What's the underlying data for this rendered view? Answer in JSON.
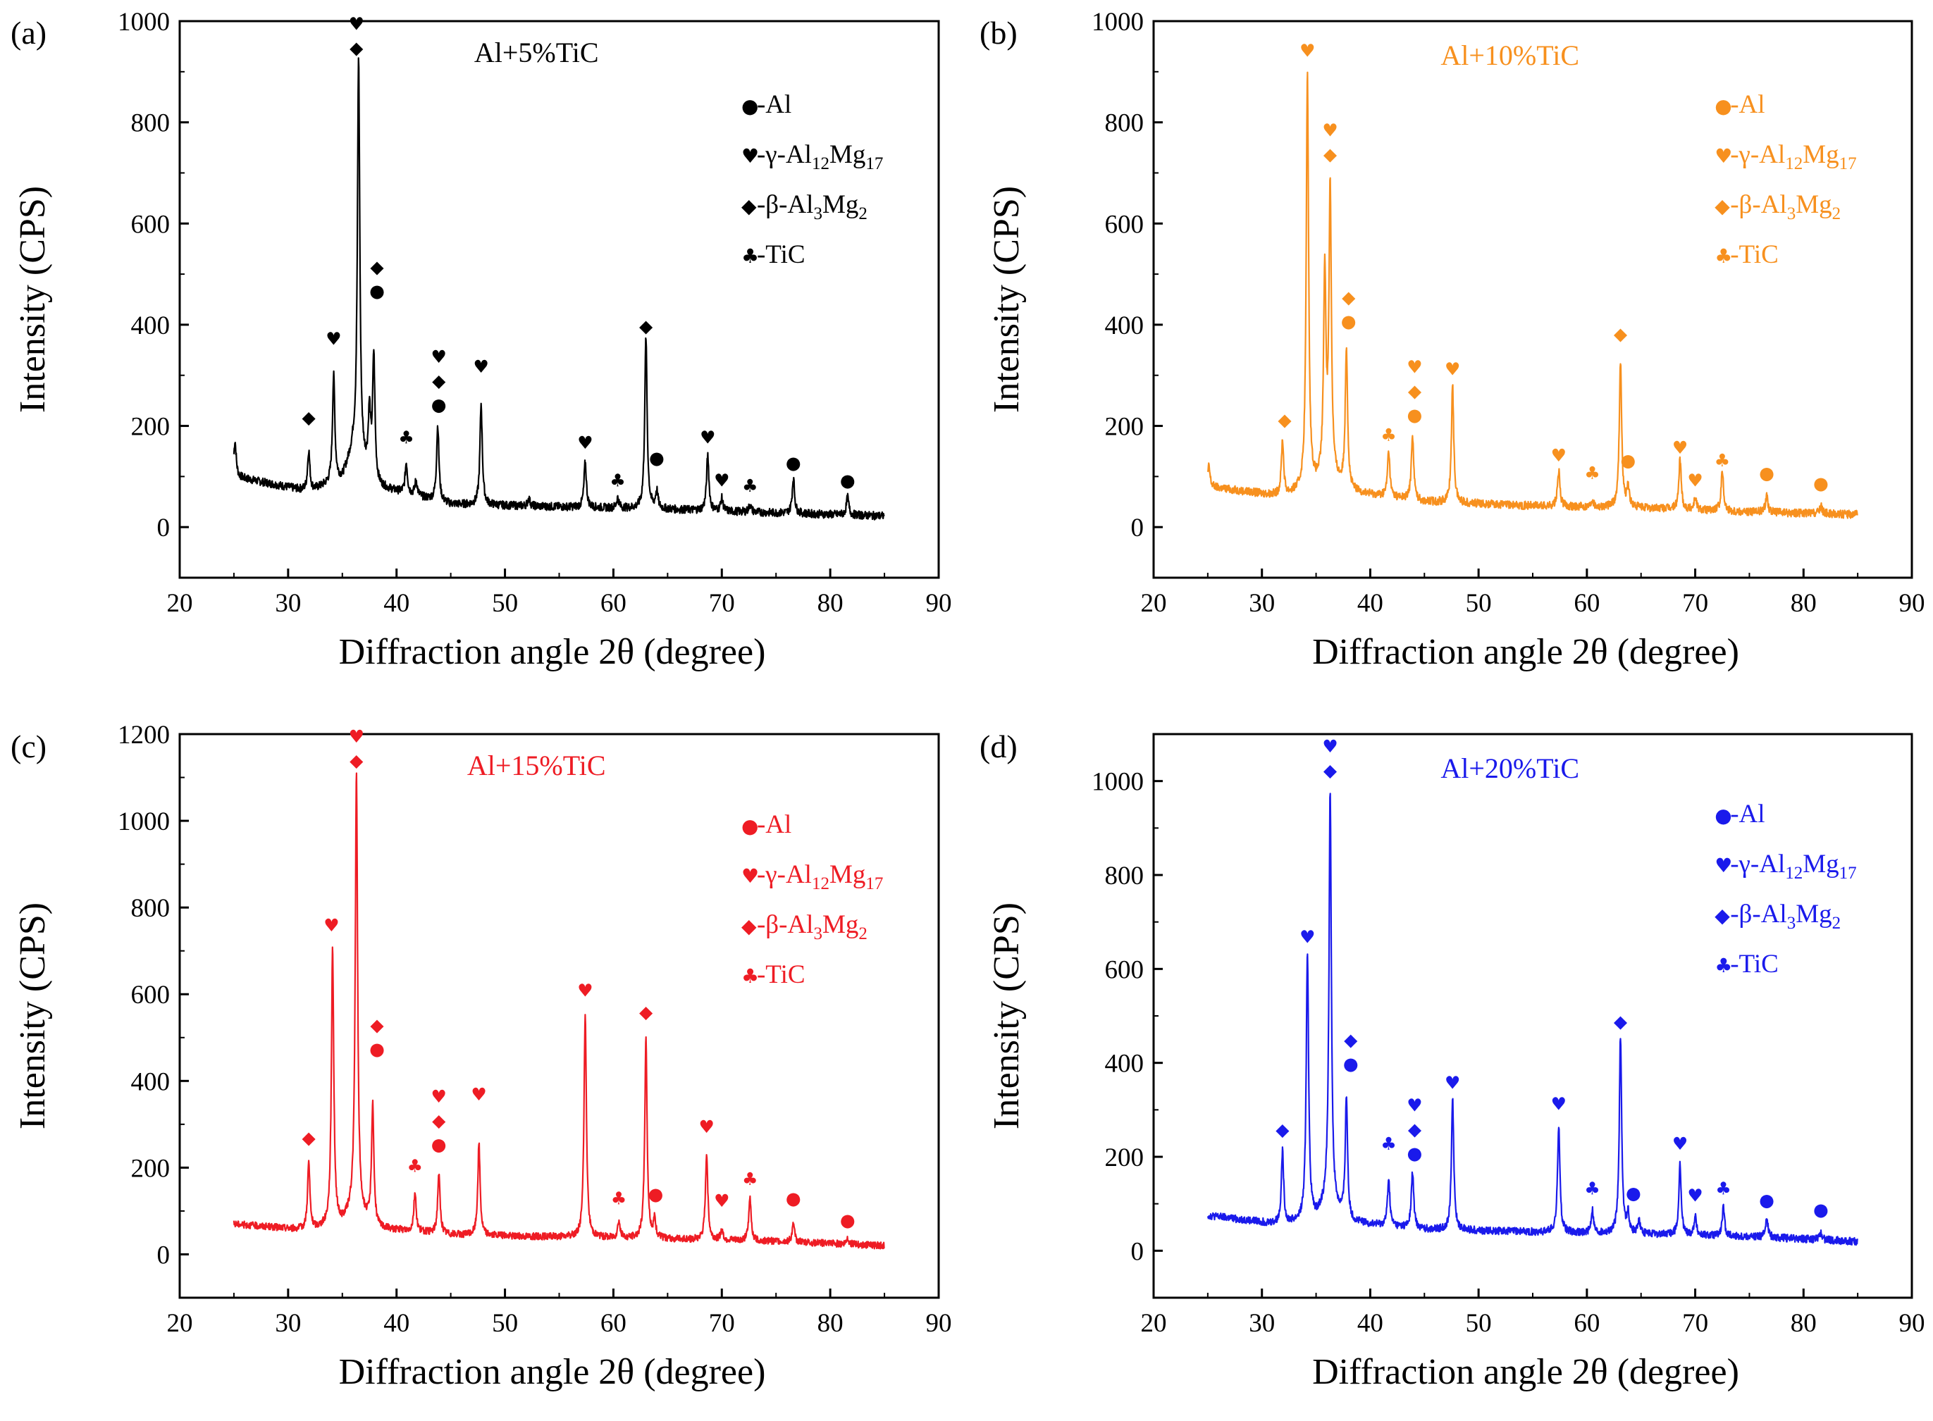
{
  "figure": {
    "x_axis_label": "Diffraction angle 2θ (degree)",
    "y_axis_label": "Intensity (CPS)",
    "legend_symbols": {
      "Al": "●",
      "Al12Mg17": "♥",
      "Al3Mg2": "◆",
      "TiC": "♣"
    }
  },
  "chart_data": [
    {
      "panel": "(a)",
      "type": "line",
      "title": "Al+5%TiC",
      "color": "#000000",
      "xlabel": "Diffraction angle 2θ (degree)",
      "ylabel": "Intensity (CPS)",
      "xlim": [
        20,
        90
      ],
      "ylim": [
        -100,
        1000
      ],
      "xticks": [
        20,
        30,
        40,
        50,
        60,
        70,
        80,
        90
      ],
      "yticks": [
        0,
        200,
        400,
        600,
        800,
        1000
      ],
      "baseline": [
        [
          25,
          100
        ],
        [
          32,
          70
        ],
        [
          35,
          95
        ],
        [
          36,
          150
        ],
        [
          38,
          80
        ],
        [
          45,
          45
        ],
        [
          55,
          40
        ],
        [
          65,
          35
        ],
        [
          75,
          28
        ],
        [
          85,
          22
        ]
      ],
      "peaks": [
        [
          25.1,
          70
        ],
        [
          31.9,
          80
        ],
        [
          34.2,
          210
        ],
        [
          36.5,
          790
        ],
        [
          37.5,
          120
        ],
        [
          37.9,
          250
        ],
        [
          40.9,
          60
        ],
        [
          41.8,
          30
        ],
        [
          43.8,
          150
        ],
        [
          47.8,
          200
        ],
        [
          52.2,
          15
        ],
        [
          57.4,
          90
        ],
        [
          60.4,
          20
        ],
        [
          63.0,
          340
        ],
        [
          64.0,
          35
        ],
        [
          68.7,
          110
        ],
        [
          70.0,
          25
        ],
        [
          72.6,
          15
        ],
        [
          76.6,
          70
        ],
        [
          81.6,
          35
        ]
      ],
      "markers": [
        {
          "x": 31.9,
          "y": 205,
          "symbols": [
            "◆"
          ]
        },
        {
          "x": 34.2,
          "y": 360,
          "symbols": [
            "♥"
          ]
        },
        {
          "x": 36.3,
          "y": 935,
          "symbols": [
            "♥",
            "◆"
          ]
        },
        {
          "x": 38.2,
          "y": 455,
          "symbols": [
            "◆",
            "●"
          ]
        },
        {
          "x": 40.9,
          "y": 165,
          "symbols": [
            "♣"
          ]
        },
        {
          "x": 43.9,
          "y": 230,
          "symbols": [
            "♥",
            "◆",
            "●"
          ]
        },
        {
          "x": 47.8,
          "y": 305,
          "symbols": [
            "♥"
          ]
        },
        {
          "x": 57.4,
          "y": 155,
          "symbols": [
            "♥"
          ]
        },
        {
          "x": 60.4,
          "y": 80,
          "symbols": [
            "♣"
          ]
        },
        {
          "x": 63.0,
          "y": 385,
          "symbols": [
            "◆"
          ]
        },
        {
          "x": 64.0,
          "y": 125,
          "symbols": [
            "●"
          ]
        },
        {
          "x": 68.7,
          "y": 165,
          "symbols": [
            "♥"
          ]
        },
        {
          "x": 70.0,
          "y": 80,
          "symbols": [
            "♥"
          ]
        },
        {
          "x": 72.6,
          "y": 70,
          "symbols": [
            "♣"
          ]
        },
        {
          "x": 76.6,
          "y": 115,
          "symbols": [
            "●"
          ]
        },
        {
          "x": 81.6,
          "y": 80,
          "symbols": [
            "●"
          ]
        }
      ]
    },
    {
      "panel": "(b)",
      "type": "line",
      "title": "Al+10%TiC",
      "color": "#f7901e",
      "xlabel": "Diffraction angle 2θ (degree)",
      "ylabel": "Intensity (CPS)",
      "xlim": [
        20,
        90
      ],
      "ylim": [
        -100,
        1000
      ],
      "xticks": [
        20,
        30,
        40,
        50,
        60,
        70,
        80,
        90
      ],
      "yticks": [
        0,
        200,
        400,
        600,
        800,
        1000
      ],
      "baseline": [
        [
          25,
          80
        ],
        [
          32,
          60
        ],
        [
          35,
          80
        ],
        [
          36,
          100
        ],
        [
          38,
          70
        ],
        [
          45,
          50
        ],
        [
          55,
          42
        ],
        [
          65,
          38
        ],
        [
          75,
          30
        ],
        [
          85,
          25
        ]
      ],
      "peaks": [
        [
          25.1,
          40
        ],
        [
          31.9,
          110
        ],
        [
          34.2,
          820
        ],
        [
          35.8,
          400
        ],
        [
          36.3,
          570
        ],
        [
          37.8,
          280
        ],
        [
          41.7,
          90
        ],
        [
          43.9,
          130
        ],
        [
          47.6,
          230
        ],
        [
          57.4,
          70
        ],
        [
          60.5,
          15
        ],
        [
          63.1,
          290
        ],
        [
          63.8,
          40
        ],
        [
          68.6,
          100
        ],
        [
          70.0,
          25
        ],
        [
          72.5,
          80
        ],
        [
          76.6,
          35
        ],
        [
          81.6,
          15
        ]
      ],
      "markers": [
        {
          "x": 32.1,
          "y": 200,
          "symbols": [
            "◆"
          ]
        },
        {
          "x": 34.2,
          "y": 930,
          "symbols": [
            "♥"
          ]
        },
        {
          "x": 36.3,
          "y": 725,
          "symbols": [
            "♥",
            "◆"
          ]
        },
        {
          "x": 38.0,
          "y": 395,
          "symbols": [
            "◆",
            "●"
          ]
        },
        {
          "x": 41.7,
          "y": 170,
          "symbols": [
            "♣"
          ]
        },
        {
          "x": 44.1,
          "y": 210,
          "symbols": [
            "♥",
            "◆",
            "●"
          ]
        },
        {
          "x": 47.6,
          "y": 300,
          "symbols": [
            "♥"
          ]
        },
        {
          "x": 57.4,
          "y": 130,
          "symbols": [
            "♥"
          ]
        },
        {
          "x": 60.5,
          "y": 95,
          "symbols": [
            "♣"
          ]
        },
        {
          "x": 63.1,
          "y": 370,
          "symbols": [
            "◆"
          ]
        },
        {
          "x": 63.8,
          "y": 120,
          "symbols": [
            "●"
          ]
        },
        {
          "x": 68.6,
          "y": 145,
          "symbols": [
            "♥"
          ]
        },
        {
          "x": 70.0,
          "y": 80,
          "symbols": [
            "♥"
          ]
        },
        {
          "x": 72.5,
          "y": 120,
          "symbols": [
            "♣"
          ]
        },
        {
          "x": 76.6,
          "y": 95,
          "symbols": [
            "●"
          ]
        },
        {
          "x": 81.6,
          "y": 75,
          "symbols": [
            "●"
          ]
        }
      ]
    },
    {
      "panel": "(c)",
      "type": "line",
      "title": "Al+15%TiC",
      "color": "#ee1c24",
      "xlabel": "Diffraction angle 2θ (degree)",
      "ylabel": "Intensity (CPS)",
      "xlim": [
        20,
        90
      ],
      "ylim": [
        -100,
        1200
      ],
      "xticks": [
        20,
        30,
        40,
        50,
        60,
        70,
        80,
        90
      ],
      "yticks": [
        0,
        200,
        400,
        600,
        800,
        1000,
        1200
      ],
      "baseline": [
        [
          25,
          70
        ],
        [
          32,
          55
        ],
        [
          35,
          70
        ],
        [
          36,
          100
        ],
        [
          38,
          60
        ],
        [
          45,
          45
        ],
        [
          55,
          40
        ],
        [
          65,
          35
        ],
        [
          75,
          30
        ],
        [
          85,
          20
        ]
      ],
      "peaks": [
        [
          31.9,
          155
        ],
        [
          34.1,
          640
        ],
        [
          36.3,
          1010
        ],
        [
          37.8,
          280
        ],
        [
          41.7,
          90
        ],
        [
          43.9,
          140
        ],
        [
          47.6,
          210
        ],
        [
          57.4,
          520
        ],
        [
          60.5,
          40
        ],
        [
          63.0,
          460
        ],
        [
          63.8,
          40
        ],
        [
          68.6,
          200
        ],
        [
          70.0,
          25
        ],
        [
          72.6,
          100
        ],
        [
          76.6,
          40
        ],
        [
          81.6,
          15
        ]
      ],
      "markers": [
        {
          "x": 31.9,
          "y": 255,
          "symbols": [
            "◆"
          ]
        },
        {
          "x": 34.0,
          "y": 745,
          "symbols": [
            "♥"
          ]
        },
        {
          "x": 36.3,
          "y": 1125,
          "symbols": [
            "♥",
            "◆"
          ]
        },
        {
          "x": 38.2,
          "y": 460,
          "symbols": [
            "◆",
            "●"
          ]
        },
        {
          "x": 41.7,
          "y": 190,
          "symbols": [
            "♣"
          ]
        },
        {
          "x": 43.9,
          "y": 240,
          "symbols": [
            "♥",
            "◆",
            "●"
          ]
        },
        {
          "x": 47.6,
          "y": 355,
          "symbols": [
            "♥"
          ]
        },
        {
          "x": 57.4,
          "y": 595,
          "symbols": [
            "♥"
          ]
        },
        {
          "x": 60.5,
          "y": 115,
          "symbols": [
            "♣"
          ]
        },
        {
          "x": 63.0,
          "y": 545,
          "symbols": [
            "◆"
          ]
        },
        {
          "x": 63.9,
          "y": 125,
          "symbols": [
            "●"
          ]
        },
        {
          "x": 68.6,
          "y": 280,
          "symbols": [
            "♥"
          ]
        },
        {
          "x": 70.0,
          "y": 110,
          "symbols": [
            "♥"
          ]
        },
        {
          "x": 72.6,
          "y": 160,
          "symbols": [
            "♣"
          ]
        },
        {
          "x": 76.6,
          "y": 115,
          "symbols": [
            "●"
          ]
        },
        {
          "x": 81.6,
          "y": 65,
          "symbols": [
            "●"
          ]
        }
      ]
    },
    {
      "panel": "(d)",
      "type": "line",
      "title": "Al+20%TiC",
      "color": "#1a1aeb",
      "xlabel": "Diffraction angle 2θ (degree)",
      "ylabel": "Intensity (CPS)",
      "xlim": [
        20,
        90
      ],
      "ylim": [
        -100,
        1100
      ],
      "xticks": [
        20,
        30,
        40,
        50,
        60,
        70,
        80,
        90
      ],
      "yticks": [
        0,
        200,
        400,
        600,
        800,
        1000
      ],
      "baseline": [
        [
          25,
          75
        ],
        [
          32,
          55
        ],
        [
          35,
          70
        ],
        [
          36,
          100
        ],
        [
          38,
          60
        ],
        [
          45,
          45
        ],
        [
          55,
          40
        ],
        [
          65,
          35
        ],
        [
          75,
          30
        ],
        [
          85,
          20
        ]
      ],
      "peaks": [
        [
          31.9,
          155
        ],
        [
          34.2,
          570
        ],
        [
          36.3,
          880
        ],
        [
          37.8,
          260
        ],
        [
          41.7,
          100
        ],
        [
          43.9,
          120
        ],
        [
          47.6,
          280
        ],
        [
          57.4,
          230
        ],
        [
          60.5,
          50
        ],
        [
          63.1,
          420
        ],
        [
          63.8,
          40
        ],
        [
          64.8,
          30
        ],
        [
          68.6,
          150
        ],
        [
          70.0,
          40
        ],
        [
          72.6,
          60
        ],
        [
          76.6,
          45
        ],
        [
          81.6,
          15
        ]
      ],
      "markers": [
        {
          "x": 31.9,
          "y": 245,
          "symbols": [
            "◆"
          ]
        },
        {
          "x": 34.2,
          "y": 655,
          "symbols": [
            "♥"
          ]
        },
        {
          "x": 36.3,
          "y": 1010,
          "symbols": [
            "♥",
            "◆"
          ]
        },
        {
          "x": 38.2,
          "y": 385,
          "symbols": [
            "◆",
            "●"
          ]
        },
        {
          "x": 41.7,
          "y": 215,
          "symbols": [
            "♣"
          ]
        },
        {
          "x": 44.1,
          "y": 195,
          "symbols": [
            "♥",
            "◆",
            "●"
          ]
        },
        {
          "x": 47.6,
          "y": 345,
          "symbols": [
            "♥"
          ]
        },
        {
          "x": 57.4,
          "y": 300,
          "symbols": [
            "♥"
          ]
        },
        {
          "x": 60.5,
          "y": 120,
          "symbols": [
            "♣"
          ]
        },
        {
          "x": 63.1,
          "y": 475,
          "symbols": [
            "◆"
          ]
        },
        {
          "x": 64.3,
          "y": 110,
          "symbols": [
            "●"
          ]
        },
        {
          "x": 68.6,
          "y": 215,
          "symbols": [
            "♥"
          ]
        },
        {
          "x": 70.0,
          "y": 105,
          "symbols": [
            "♥"
          ]
        },
        {
          "x": 72.6,
          "y": 120,
          "symbols": [
            "♣"
          ]
        },
        {
          "x": 76.6,
          "y": 95,
          "symbols": [
            "●"
          ]
        },
        {
          "x": 81.6,
          "y": 75,
          "symbols": [
            "●"
          ]
        }
      ]
    }
  ],
  "legend": [
    {
      "symbol": "●",
      "prefix": "-Al",
      "sub1": "",
      "mid": "",
      "sub2": ""
    },
    {
      "symbol": "♥",
      "prefix": "-γ-Al",
      "sub1": "12",
      "mid": "Mg",
      "sub2": "17"
    },
    {
      "symbol": "◆",
      "prefix": "-β-Al",
      "sub1": "3",
      "mid": "Mg",
      "sub2": "2"
    },
    {
      "symbol": "♣",
      "prefix": "-TiC",
      "sub1": "",
      "mid": "",
      "sub2": ""
    }
  ]
}
